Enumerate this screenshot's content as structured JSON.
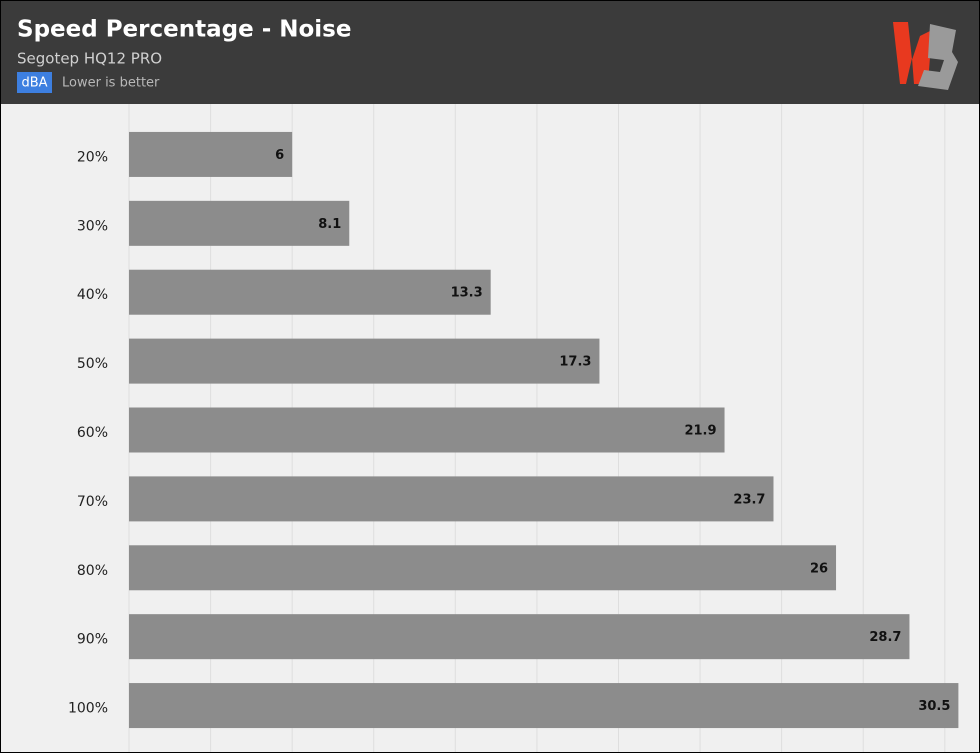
{
  "chart_data": {
    "type": "bar",
    "orientation": "horizontal",
    "title": "Speed Percentage - Noise",
    "subtitle": "Segotep HQ12 PRO",
    "unit": "dBA",
    "note": "Lower is better",
    "categories": [
      "20%",
      "30%",
      "40%",
      "50%",
      "60%",
      "70%",
      "80%",
      "90%",
      "100%"
    ],
    "values": [
      6,
      8.1,
      13.3,
      17.3,
      21.9,
      23.7,
      26,
      28.7,
      30.5
    ],
    "color": "#8c8c8c",
    "xlim": [
      0,
      31
    ],
    "xticks": [
      0,
      3,
      6,
      9,
      12,
      15,
      18,
      21,
      24,
      27,
      30
    ],
    "grid": true
  }
}
